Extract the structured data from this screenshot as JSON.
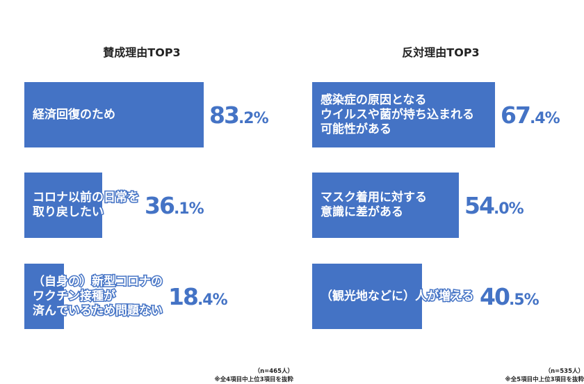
{
  "chart_data": [
    {
      "type": "bar",
      "title": "賛成理由TOP3",
      "unit": "%",
      "categories": [
        "経済回復のため",
        "コロナ以前の日常を取り戻したい",
        "（自身の）新型コロナのワクチン接種が済んでいるため問題ない"
      ],
      "label_lines": [
        [
          "経済回復のため"
        ],
        [
          "コロナ以前の日常を",
          "取り戻したい"
        ],
        [
          "（自身の）新型コロナの",
          "ワクチン接種が",
          "済んでいるため問題ない"
        ]
      ],
      "values": [
        83.2,
        36.1,
        18.4
      ],
      "value_int": [
        "83",
        "36",
        "18"
      ],
      "value_dec": [
        ".2%",
        ".1%",
        ".4%"
      ],
      "xlim": [
        0,
        100
      ],
      "sample_note": "（n=465人）",
      "footnote": "※全4項目中上位3項目を抜粋"
    },
    {
      "type": "bar",
      "title": "反対理由TOP3",
      "unit": "%",
      "categories": [
        "感染症の原因となるウイルスや菌が持ち込まれる可能性がある",
        "マスク着用に対する意識に差がある",
        "（観光地などに）人が増える"
      ],
      "label_lines": [
        [
          "感染症の原因となる",
          "ウイルスや菌が持ち込まれる",
          "可能性がある"
        ],
        [
          "マスク着用に対する",
          "意識に差がある"
        ],
        [
          "（観光地などに）人が増える"
        ]
      ],
      "values": [
        67.4,
        54.0,
        40.5
      ],
      "value_int": [
        "67",
        "54",
        "40"
      ],
      "value_dec": [
        ".4%",
        ".0%",
        ".5%"
      ],
      "xlim": [
        0,
        100
      ],
      "sample_note": "（n=535人）",
      "footnote": "※全5項目中上位3項目を抜粋"
    }
  ],
  "colors": {
    "bar": "#4473c5",
    "value_text": "#4473c5",
    "title_text": "#222222"
  }
}
